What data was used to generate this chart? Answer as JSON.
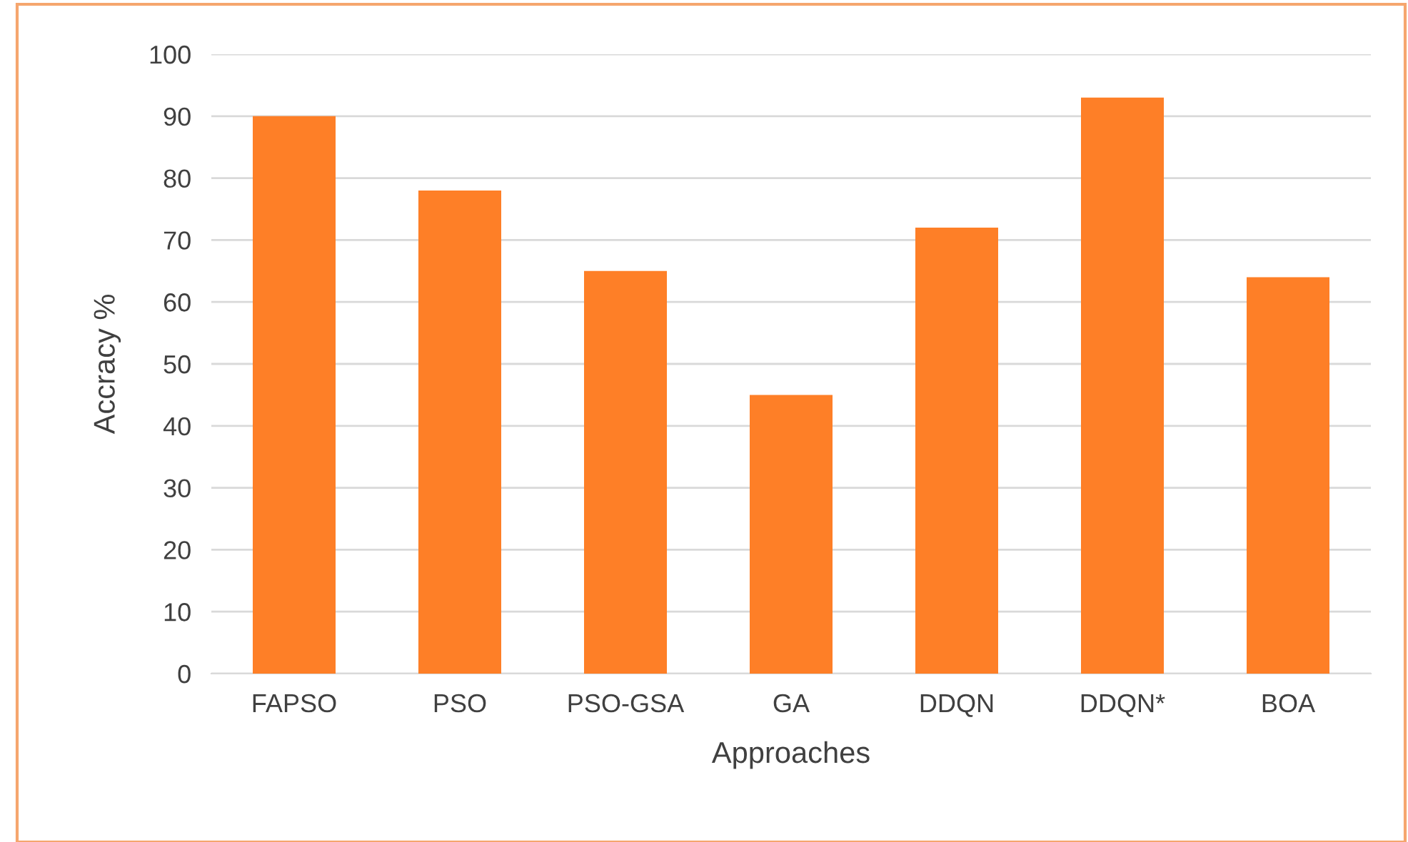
{
  "chart_data": {
    "type": "bar",
    "xlabel": "Approaches",
    "ylabel": "Accracy %",
    "categories": [
      "FAPSO",
      "PSO",
      "PSO-GSA",
      "GA",
      "DDQN",
      "DDQN*",
      "BOA"
    ],
    "values": [
      90,
      78,
      65,
      45,
      72,
      93,
      64
    ],
    "color": "#fe7f27",
    "ylim": [
      0,
      100
    ],
    "yticks": [
      0,
      10,
      20,
      30,
      40,
      50,
      60,
      70,
      80,
      90,
      100
    ],
    "grid": "y"
  }
}
